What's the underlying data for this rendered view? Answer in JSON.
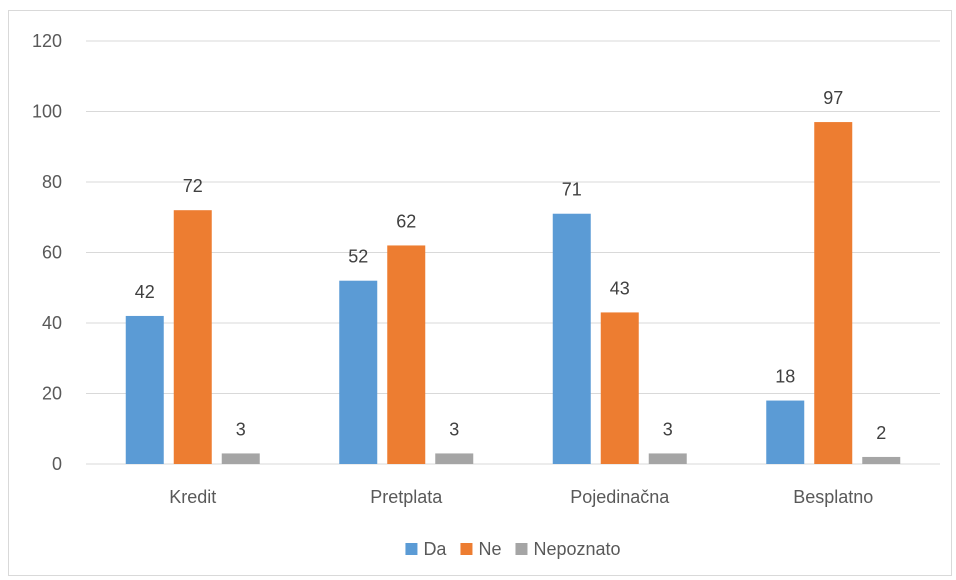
{
  "chart_data": {
    "type": "bar",
    "categories": [
      "Kredit",
      "Pretplata",
      "Pojedinačna",
      "Besplatno"
    ],
    "series": [
      {
        "name": "Da",
        "color": "#5b9bd5",
        "values": [
          42,
          52,
          71,
          18
        ]
      },
      {
        "name": "Ne",
        "color": "#ed7d31",
        "values": [
          72,
          62,
          43,
          97
        ]
      },
      {
        "name": "Nepoznato",
        "color": "#a5a5a5",
        "values": [
          3,
          3,
          3,
          2
        ]
      }
    ],
    "ylim": [
      0,
      120
    ],
    "yticks": [
      0,
      20,
      40,
      60,
      80,
      100,
      120
    ],
    "grid": true,
    "legend": "bottom",
    "title": "",
    "xlabel": "",
    "ylabel": ""
  }
}
